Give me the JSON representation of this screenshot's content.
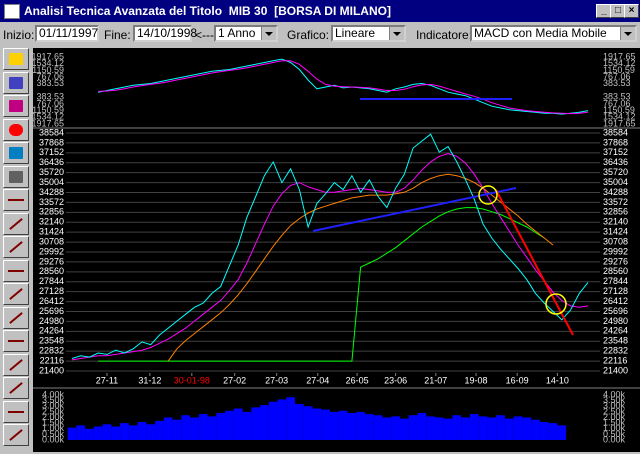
{
  "window": {
    "title": "Analisi Tecnica Avanzata del Titolo  MIB 30  [BORSA DI MILANO]"
  },
  "toolbar": {
    "start_label": "Inizio:",
    "start": "01/11/1997",
    "end_label": "Fine:",
    "end": "14/10/1998",
    "arrow": "<---",
    "period": "1 Anno",
    "chart_label": "Grafico:",
    "chart": "Lineare",
    "indicator_label": "Indicatore:",
    "indicator": "MACD con Media Mobile"
  },
  "chart_data": [
    {
      "type": "line",
      "xlim": [
        0,
        59
      ],
      "ylim": [
        -1917.65,
        1917.65
      ],
      "yticks": [
        1917.65,
        1534.12,
        1150.59,
        767.06,
        383.53,
        {
          "value": -383.53,
          "label": "383.53"
        },
        {
          "value": -767.06,
          "label": "767.06"
        },
        {
          "value": -1150.59,
          "label": "1150.59"
        },
        {
          "value": -1534.12,
          "label": "1534.12"
        },
        {
          "value": -1917.65,
          "label": "1917.65"
        }
      ],
      "grid": false,
      "series": [
        {
          "color": "#00ffff",
          "values": [
            null,
            null,
            null,
            -100,
            0,
            100,
            200,
            300,
            350,
            400,
            500,
            600,
            700,
            800,
            900,
            1000,
            1100,
            1150,
            1200,
            1300,
            1400,
            1500,
            1600,
            1700,
            1800,
            1600,
            1200,
            600,
            100,
            200,
            300,
            150,
            200,
            150,
            100,
            0,
            -100,
            100,
            200,
            350,
            400,
            300,
            100,
            -100,
            -200,
            -300,
            -500,
            -700,
            -900,
            -1000,
            -1100,
            -1150,
            -1200,
            -1250,
            -1300,
            -1300,
            -1350,
            -1300,
            -1250,
            -1150
          ]
        },
        {
          "color": "#ff00ff",
          "values": [
            null,
            null,
            null,
            -50,
            -30,
            20,
            100,
            200,
            280,
            350,
            420,
            500,
            600,
            700,
            800,
            900,
            1000,
            1080,
            1150,
            1220,
            1300,
            1400,
            1500,
            1600,
            1700,
            1700,
            1500,
            1100,
            650,
            350,
            250,
            220,
            200,
            180,
            150,
            80,
            0,
            0,
            70,
            220,
            320,
            350,
            250,
            100,
            -50,
            -200,
            -330,
            -500,
            -700,
            -850,
            -1000,
            -1080,
            -1150,
            -1200,
            -1250,
            -1280,
            -1300,
            -1320,
            -1300,
            -1250
          ]
        }
      ]
    },
    {
      "type": "line",
      "xlim": [
        0,
        59
      ],
      "ylim": [
        21400,
        38584
      ],
      "yticks": [
        21400,
        22116,
        22832,
        23548,
        24264,
        24980,
        25696,
        26412,
        27128,
        27844,
        28560,
        29276,
        29992,
        30708,
        31424,
        32140,
        32856,
        33572,
        34288,
        35004,
        35720,
        36436,
        37152,
        37868,
        38584
      ],
      "xticks": [
        {
          "value": 4,
          "label": "27-11"
        },
        {
          "value": 8.9,
          "label": "31-12"
        },
        {
          "value": 13.7,
          "label": "30-01-98",
          "color": "#ff0000"
        },
        {
          "value": 18.6,
          "label": "27-02"
        },
        {
          "value": 23.4,
          "label": "27-03"
        },
        {
          "value": 28.1,
          "label": "27-04"
        },
        {
          "value": 32.6,
          "label": "26-05"
        },
        {
          "value": 37,
          "label": "23-06"
        },
        {
          "value": 41.6,
          "label": "21-07"
        },
        {
          "value": 46.2,
          "label": "19-08"
        },
        {
          "value": 50.9,
          "label": "16-09"
        },
        {
          "value": 55.5,
          "label": "14-10"
        }
      ],
      "grid": true,
      "series": [
        {
          "color": "#00ff00",
          "values": [
            null,
            null,
            null,
            22116,
            22116,
            22116,
            22116,
            22116,
            22116,
            22116,
            22116,
            22116,
            22116,
            22116,
            22116,
            22116,
            22116,
            22116,
            22116,
            22116,
            22116,
            22116,
            22116,
            22116,
            22116,
            22116,
            22116,
            22116,
            22116,
            22116,
            22116,
            22116,
            22116,
            28900,
            29200,
            29500,
            29900,
            30300,
            30800,
            31300,
            31800,
            32200,
            32600,
            32900,
            33100,
            33200,
            33200,
            33100,
            32900,
            32700,
            32400,
            32100,
            31800,
            31400,
            31000,
            null,
            null,
            null,
            null,
            null
          ]
        },
        {
          "color": "#ff8000",
          "values": [
            null,
            null,
            null,
            null,
            null,
            null,
            null,
            null,
            null,
            null,
            null,
            22116,
            23000,
            23600,
            24100,
            24600,
            25100,
            25600,
            26200,
            26900,
            27700,
            28600,
            29500,
            30400,
            31200,
            31900,
            32400,
            32800,
            33100,
            33300,
            33500,
            33700,
            33900,
            34000,
            34100,
            34100,
            34100,
            34200,
            34300,
            34600,
            35000,
            35300,
            35500,
            35600,
            35500,
            35300,
            35000,
            34600,
            34100,
            33600,
            33100,
            32600,
            32000,
            31500,
            31000,
            30500,
            null,
            null,
            null,
            null
          ]
        },
        {
          "color": "#ff00ff",
          "values": [
            22200,
            22300,
            22400,
            22500,
            22500,
            22600,
            22700,
            22800,
            22900,
            23100,
            23400,
            23700,
            24100,
            24500,
            25000,
            25500,
            26000,
            26500,
            27200,
            28000,
            29200,
            30600,
            32000,
            33300,
            34200,
            34800,
            35000,
            34700,
            34500,
            34300,
            34300,
            34400,
            34500,
            34600,
            34500,
            34400,
            34300,
            34300,
            34600,
            35200,
            35900,
            36500,
            36900,
            37100,
            36900,
            36400,
            35600,
            34600,
            33500,
            32500,
            31500,
            30500,
            29600,
            28700,
            27900,
            27100,
            26500,
            26100,
            26000,
            26100
          ]
        },
        {
          "color": "#00ffff",
          "values": [
            22300,
            22500,
            22400,
            22700,
            22600,
            22900,
            22700,
            23000,
            23500,
            23300,
            24000,
            24500,
            25000,
            25500,
            26000,
            26300,
            27000,
            27500,
            29000,
            30500,
            32500,
            34000,
            35500,
            36500,
            35000,
            36000,
            34500,
            31800,
            33500,
            34200,
            35000,
            34500,
            35500,
            34300,
            35200,
            34000,
            33200,
            34600,
            35600,
            37500,
            38000,
            38500,
            37200,
            37600,
            36500,
            35200,
            33800,
            32000,
            31000,
            30200,
            29500,
            28800,
            28000,
            27000,
            26300,
            25700,
            25100,
            25800,
            27000,
            27800
          ]
        }
      ]
    },
    {
      "type": "bar",
      "xlim": [
        0,
        59
      ],
      "ylim": [
        0,
        4000
      ],
      "color": "#0000ff",
      "grid": false,
      "yticks": [
        {
          "value": 4000,
          "label": "4.00k"
        },
        {
          "value": 3500,
          "label": "3.50k"
        },
        {
          "value": 3000,
          "label": "3.00k"
        },
        {
          "value": 2500,
          "label": "2.50k"
        },
        {
          "value": 2000,
          "label": "2.00k"
        },
        {
          "value": 1500,
          "label": "1.50k"
        },
        {
          "value": 1000,
          "label": "1.00k"
        },
        {
          "value": 500,
          "label": "0.50k"
        },
        {
          "value": 0,
          "label": "0.00k"
        }
      ],
      "values": [
        1100,
        1300,
        1000,
        1200,
        1400,
        1200,
        1500,
        1300,
        1600,
        1400,
        1700,
        2000,
        1800,
        2200,
        2000,
        2300,
        2100,
        2400,
        2600,
        2800,
        2500,
        2900,
        3100,
        3400,
        3600,
        3800,
        3200,
        3000,
        2800,
        2700,
        2500,
        2600,
        2400,
        2500,
        2300,
        2200,
        2000,
        2100,
        1900,
        2200,
        2400,
        2100,
        2000,
        1900,
        2200,
        2000,
        2300,
        2100,
        2000,
        2200,
        1900,
        2100,
        2000,
        1800,
        1600,
        1500,
        1300,
        null,
        null,
        null
      ]
    }
  ]
}
